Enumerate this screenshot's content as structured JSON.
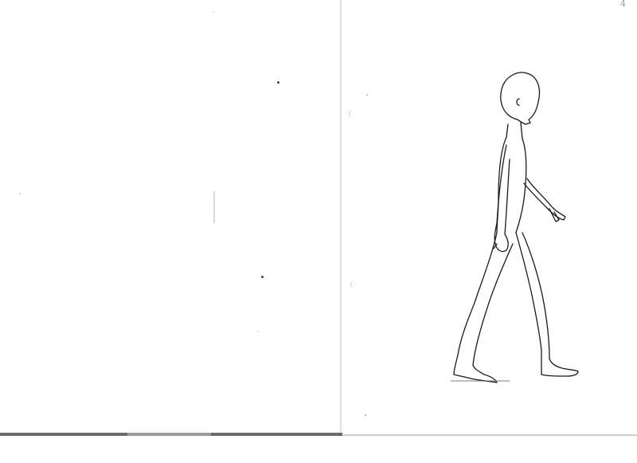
{
  "page": {
    "page_number": "4"
  },
  "figure": {
    "icon": "walking-figure-outline",
    "stroke_color": "#1a1a1a"
  }
}
